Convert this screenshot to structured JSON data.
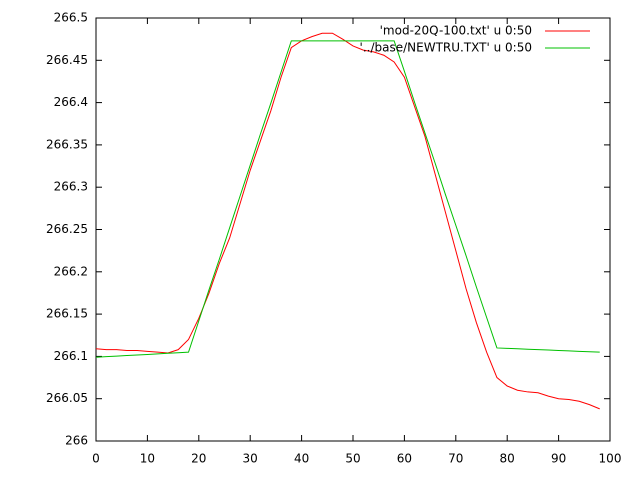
{
  "chart_data": {
    "type": "line",
    "x": [
      0,
      2,
      4,
      6,
      8,
      10,
      12,
      14,
      16,
      18,
      20,
      22,
      24,
      26,
      28,
      30,
      32,
      34,
      36,
      38,
      40,
      42,
      44,
      46,
      48,
      50,
      52,
      54,
      56,
      58,
      60,
      62,
      64,
      66,
      68,
      70,
      72,
      74,
      76,
      78,
      80,
      82,
      84,
      86,
      88,
      90,
      92,
      94,
      96,
      98
    ],
    "series": [
      {
        "name": "'mod-20Q-100.txt' u 0:50",
        "color": "#ff0000",
        "values": [
          266.109,
          266.108,
          266.108,
          266.107,
          266.107,
          266.106,
          266.105,
          266.104,
          266.108,
          266.12,
          266.145,
          266.175,
          266.21,
          266.24,
          266.28,
          266.32,
          266.355,
          266.39,
          266.43,
          266.465,
          266.473,
          266.478,
          266.482,
          266.482,
          266.475,
          266.467,
          266.462,
          266.46,
          266.456,
          266.448,
          266.43,
          266.395,
          266.36,
          266.315,
          266.27,
          266.225,
          266.18,
          266.14,
          266.105,
          266.075,
          266.065,
          266.06,
          266.058,
          266.057,
          266.053,
          266.05,
          266.049,
          266.047,
          266.043,
          266.038
        ]
      },
      {
        "name": "'../base/NEWTRU.TXT' u 0:50",
        "color": "#00c000",
        "values": [
          266.099,
          266.0997,
          266.1003,
          266.101,
          266.1017,
          266.1023,
          266.103,
          266.1037,
          266.1043,
          266.105,
          266.142,
          266.179,
          266.215,
          266.252,
          266.289,
          266.326,
          266.363,
          266.399,
          266.436,
          266.473,
          266.473,
          266.473,
          266.473,
          266.473,
          266.473,
          266.473,
          266.473,
          266.473,
          266.473,
          266.473,
          266.437,
          266.4,
          266.364,
          266.328,
          266.291,
          266.255,
          266.219,
          266.182,
          266.146,
          266.11,
          266.1095,
          266.109,
          266.1085,
          266.108,
          266.1075,
          266.107,
          266.1065,
          266.106,
          266.1055,
          266.105
        ]
      }
    ],
    "xlim": [
      0,
      100
    ],
    "xticks": [
      0,
      10,
      20,
      30,
      40,
      50,
      60,
      70,
      80,
      90,
      100
    ],
    "ylim": [
      266,
      266.5
    ],
    "yticks": [
      266,
      266.05,
      266.1,
      266.15,
      266.2,
      266.25,
      266.3,
      266.35,
      266.4,
      266.45,
      266.5
    ],
    "grid": false,
    "legend": "top-right"
  }
}
